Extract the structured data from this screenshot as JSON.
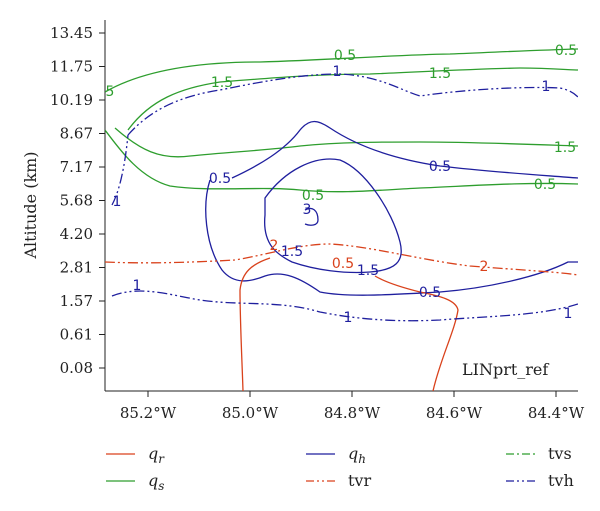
{
  "chart_data": {
    "type": "line",
    "title": "",
    "xlabel": "",
    "ylabel": "Altitude (km)",
    "panel_label": "LINprt_ref",
    "x_ticks": [
      "85.2°W",
      "85.0°W",
      "84.8°W",
      "84.6°W",
      "84.4°W"
    ],
    "y_ticks": [
      "13.45",
      "11.75",
      "10.19",
      "8.67",
      "7.17",
      "5.68",
      "4.20",
      "2.81",
      "1.57",
      "0.61",
      "0.08"
    ],
    "legend": [
      {
        "symbol": "q",
        "sub": "r",
        "name": "qr",
        "color": "#d9421c",
        "style": "solid"
      },
      {
        "symbol": "q",
        "sub": "h",
        "name": "qh",
        "color": "#1f1f9e",
        "style": "solid"
      },
      {
        "label": "tvs",
        "name": "tvs",
        "color": "#2e9e2e",
        "style": "dashdot"
      },
      {
        "symbol": "q",
        "sub": "s",
        "name": "qs",
        "color": "#2e9e2e",
        "style": "solid"
      },
      {
        "label": "tvr",
        "name": "tvr",
        "color": "#d9421c",
        "style": "dashdotdot"
      },
      {
        "label": "tvh",
        "name": "tvh",
        "color": "#1f1f9e",
        "style": "dashdotdot"
      }
    ],
    "contour_labels": {
      "qs": [
        "0.5",
        "0.5",
        "1.5",
        "1.5",
        "1.5",
        "0.5",
        "0.5",
        "5"
      ],
      "qh": [
        "0.5",
        "0.5",
        "1.5",
        "1.5",
        "3",
        "0.5"
      ],
      "tvr": [
        "2",
        "0.5",
        "2"
      ],
      "tvh": [
        "1",
        "1",
        "1",
        "1",
        "1",
        "1"
      ]
    }
  }
}
